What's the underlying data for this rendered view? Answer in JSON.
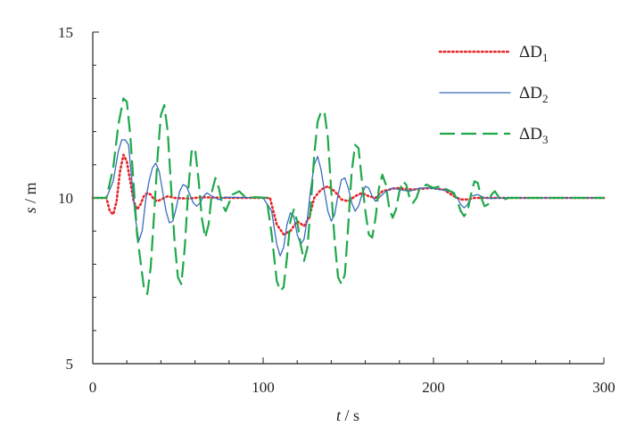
{
  "chart_data": {
    "type": "line",
    "xlabel": {
      "var": "t",
      "sep": " / ",
      "unit": "s"
    },
    "ylabel": {
      "var": "s",
      "sep": " / ",
      "unit": "m"
    },
    "xlim": [
      0,
      300
    ],
    "ylim": [
      5,
      15
    ],
    "xticks": [
      "0",
      "100",
      "200",
      "300"
    ],
    "yticks": [
      "5",
      "10",
      "15"
    ],
    "grid": false,
    "legend_position": "top-right",
    "series": [
      {
        "name": "ΔD1",
        "label_main": "ΔD",
        "label_sub": "1",
        "color": "#e8262a",
        "style": "dotted",
        "points": [
          [
            0,
            10
          ],
          [
            8,
            10
          ],
          [
            10,
            9.6
          ],
          [
            12,
            9.5
          ],
          [
            14,
            9.9
          ],
          [
            16,
            10.8
          ],
          [
            18,
            11.3
          ],
          [
            20,
            11.1
          ],
          [
            22,
            10.5
          ],
          [
            24,
            9.9
          ],
          [
            26,
            9.65
          ],
          [
            28,
            9.8
          ],
          [
            30,
            10.05
          ],
          [
            32,
            10.15
          ],
          [
            34,
            10.1
          ],
          [
            36,
            9.95
          ],
          [
            38,
            9.9
          ],
          [
            40,
            9.95
          ],
          [
            44,
            10.05
          ],
          [
            48,
            10.0
          ],
          [
            56,
            9.98
          ],
          [
            64,
            10.02
          ],
          [
            80,
            10.0
          ],
          [
            104,
            10.0
          ],
          [
            108,
            9.2
          ],
          [
            112,
            8.9
          ],
          [
            116,
            9.0
          ],
          [
            120,
            9.3
          ],
          [
            124,
            9.15
          ],
          [
            127,
            9.4
          ],
          [
            130,
            10.0
          ],
          [
            134,
            10.25
          ],
          [
            138,
            10.35
          ],
          [
            142,
            10.2
          ],
          [
            146,
            9.95
          ],
          [
            150,
            9.9
          ],
          [
            154,
            10.05
          ],
          [
            158,
            10.15
          ],
          [
            162,
            10.05
          ],
          [
            166,
            10.0
          ],
          [
            170,
            10.2
          ],
          [
            178,
            10.3
          ],
          [
            188,
            10.25
          ],
          [
            198,
            10.3
          ],
          [
            206,
            10.25
          ],
          [
            212,
            10.05
          ],
          [
            216,
            9.95
          ],
          [
            220,
            9.95
          ],
          [
            224,
            10.0
          ],
          [
            232,
            10.0
          ],
          [
            300,
            10.0
          ]
        ]
      },
      {
        "name": "ΔD2",
        "label_main": "ΔD",
        "label_sub": "2",
        "color": "#3b6bbd",
        "style": "solid",
        "points": [
          [
            0,
            10
          ],
          [
            8,
            10
          ],
          [
            12,
            10.5
          ],
          [
            15,
            11.4
          ],
          [
            17,
            11.75
          ],
          [
            19,
            11.75
          ],
          [
            21,
            11.6
          ],
          [
            23,
            10.5
          ],
          [
            25,
            9.4
          ],
          [
            27,
            8.7
          ],
          [
            29,
            9.0
          ],
          [
            31,
            9.9
          ],
          [
            33,
            10.5
          ],
          [
            35,
            10.9
          ],
          [
            37,
            11.05
          ],
          [
            39,
            10.8
          ],
          [
            41,
            10.2
          ],
          [
            43,
            9.6
          ],
          [
            45,
            9.25
          ],
          [
            47,
            9.3
          ],
          [
            49,
            9.7
          ],
          [
            51,
            10.2
          ],
          [
            53,
            10.4
          ],
          [
            55,
            10.35
          ],
          [
            57,
            10.1
          ],
          [
            59,
            9.85
          ],
          [
            61,
            9.75
          ],
          [
            63,
            9.85
          ],
          [
            65,
            10.05
          ],
          [
            67,
            10.15
          ],
          [
            70,
            10.05
          ],
          [
            74,
            9.95
          ],
          [
            78,
            10.02
          ],
          [
            100,
            10.0
          ],
          [
            105,
            9.6
          ],
          [
            108,
            8.6
          ],
          [
            110,
            8.25
          ],
          [
            112,
            8.5
          ],
          [
            114,
            9.2
          ],
          [
            116,
            9.55
          ],
          [
            118,
            9.45
          ],
          [
            120,
            8.9
          ],
          [
            122,
            8.6
          ],
          [
            124,
            8.75
          ],
          [
            126,
            9.4
          ],
          [
            128,
            10.3
          ],
          [
            130,
            11.0
          ],
          [
            132,
            11.25
          ],
          [
            134,
            10.85
          ],
          [
            136,
            10.2
          ],
          [
            138,
            9.6
          ],
          [
            140,
            9.3
          ],
          [
            142,
            9.5
          ],
          [
            144,
            10.1
          ],
          [
            146,
            10.55
          ],
          [
            148,
            10.6
          ],
          [
            150,
            10.3
          ],
          [
            152,
            9.85
          ],
          [
            154,
            9.6
          ],
          [
            156,
            9.75
          ],
          [
            158,
            10.1
          ],
          [
            160,
            10.35
          ],
          [
            162,
            10.3
          ],
          [
            164,
            10.05
          ],
          [
            166,
            9.9
          ],
          [
            168,
            10.0
          ],
          [
            172,
            10.2
          ],
          [
            176,
            10.3
          ],
          [
            180,
            10.25
          ],
          [
            186,
            10.2
          ],
          [
            192,
            10.3
          ],
          [
            198,
            10.3
          ],
          [
            204,
            10.25
          ],
          [
            210,
            10.2
          ],
          [
            214,
            10.0
          ],
          [
            216,
            9.8
          ],
          [
            218,
            9.7
          ],
          [
            220,
            9.8
          ],
          [
            222,
            10.05
          ],
          [
            226,
            10.1
          ],
          [
            230,
            10.0
          ],
          [
            234,
            9.98
          ],
          [
            240,
            10.0
          ],
          [
            300,
            10.0
          ]
        ]
      },
      {
        "name": "ΔD3",
        "label_main": "ΔD",
        "label_sub": "3",
        "color": "#1ea84a",
        "style": "dashed",
        "points": [
          [
            0,
            10
          ],
          [
            8,
            10
          ],
          [
            12,
            10.9
          ],
          [
            15,
            12.2
          ],
          [
            18,
            13.0
          ],
          [
            20,
            12.9
          ],
          [
            22,
            11.9
          ],
          [
            24,
            10.4
          ],
          [
            26,
            8.9
          ],
          [
            28,
            8.1
          ],
          [
            30,
            7.3
          ],
          [
            32,
            7.1
          ],
          [
            34,
            7.9
          ],
          [
            36,
            9.5
          ],
          [
            38,
            11.2
          ],
          [
            40,
            12.5
          ],
          [
            42,
            12.8
          ],
          [
            44,
            12.0
          ],
          [
            46,
            10.3
          ],
          [
            48,
            8.7
          ],
          [
            50,
            7.6
          ],
          [
            52,
            7.4
          ],
          [
            54,
            8.5
          ],
          [
            56,
            10.2
          ],
          [
            58,
            11.4
          ],
          [
            60,
            11.5
          ],
          [
            62,
            10.6
          ],
          [
            64,
            9.4
          ],
          [
            66,
            8.8
          ],
          [
            68,
            9.2
          ],
          [
            70,
            10.2
          ],
          [
            72,
            10.6
          ],
          [
            74,
            10.3
          ],
          [
            76,
            9.8
          ],
          [
            78,
            9.6
          ],
          [
            80,
            9.85
          ],
          [
            82,
            10.1
          ],
          [
            86,
            10.2
          ],
          [
            90,
            10.0
          ],
          [
            96,
            10.02
          ],
          [
            102,
            10.0
          ],
          [
            105,
            8.9
          ],
          [
            108,
            7.5
          ],
          [
            110,
            7.2
          ],
          [
            112,
            7.3
          ],
          [
            114,
            8.2
          ],
          [
            116,
            9.3
          ],
          [
            118,
            9.65
          ],
          [
            120,
            9.3
          ],
          [
            122,
            8.6
          ],
          [
            124,
            8.1
          ],
          [
            126,
            8.5
          ],
          [
            128,
            9.8
          ],
          [
            130,
            11.3
          ],
          [
            132,
            12.3
          ],
          [
            134,
            12.6
          ],
          [
            136,
            12.6
          ],
          [
            138,
            11.8
          ],
          [
            140,
            10.2
          ],
          [
            142,
            8.7
          ],
          [
            144,
            7.6
          ],
          [
            146,
            7.4
          ],
          [
            148,
            7.7
          ],
          [
            150,
            9.2
          ],
          [
            152,
            10.8
          ],
          [
            154,
            11.6
          ],
          [
            156,
            11.5
          ],
          [
            158,
            10.5
          ],
          [
            160,
            9.6
          ],
          [
            162,
            8.9
          ],
          [
            164,
            8.8
          ],
          [
            166,
            9.4
          ],
          [
            168,
            10.3
          ],
          [
            170,
            10.7
          ],
          [
            172,
            10.4
          ],
          [
            174,
            9.7
          ],
          [
            176,
            9.4
          ],
          [
            178,
            9.65
          ],
          [
            180,
            10.2
          ],
          [
            182,
            10.5
          ],
          [
            184,
            10.4
          ],
          [
            186,
            10.0
          ],
          [
            188,
            9.85
          ],
          [
            190,
            10.0
          ],
          [
            192,
            10.3
          ],
          [
            196,
            10.4
          ],
          [
            200,
            10.3
          ],
          [
            204,
            10.35
          ],
          [
            208,
            10.25
          ],
          [
            212,
            10.15
          ],
          [
            214,
            9.9
          ],
          [
            216,
            9.6
          ],
          [
            218,
            9.45
          ],
          [
            220,
            9.6
          ],
          [
            222,
            10.1
          ],
          [
            224,
            10.5
          ],
          [
            226,
            10.45
          ],
          [
            228,
            10.0
          ],
          [
            230,
            9.75
          ],
          [
            232,
            9.8
          ],
          [
            234,
            10.1
          ],
          [
            236,
            10.2
          ],
          [
            238,
            10.05
          ],
          [
            240,
            9.92
          ],
          [
            244,
            10.0
          ],
          [
            250,
            10.0
          ],
          [
            300,
            10.0
          ]
        ]
      }
    ]
  }
}
